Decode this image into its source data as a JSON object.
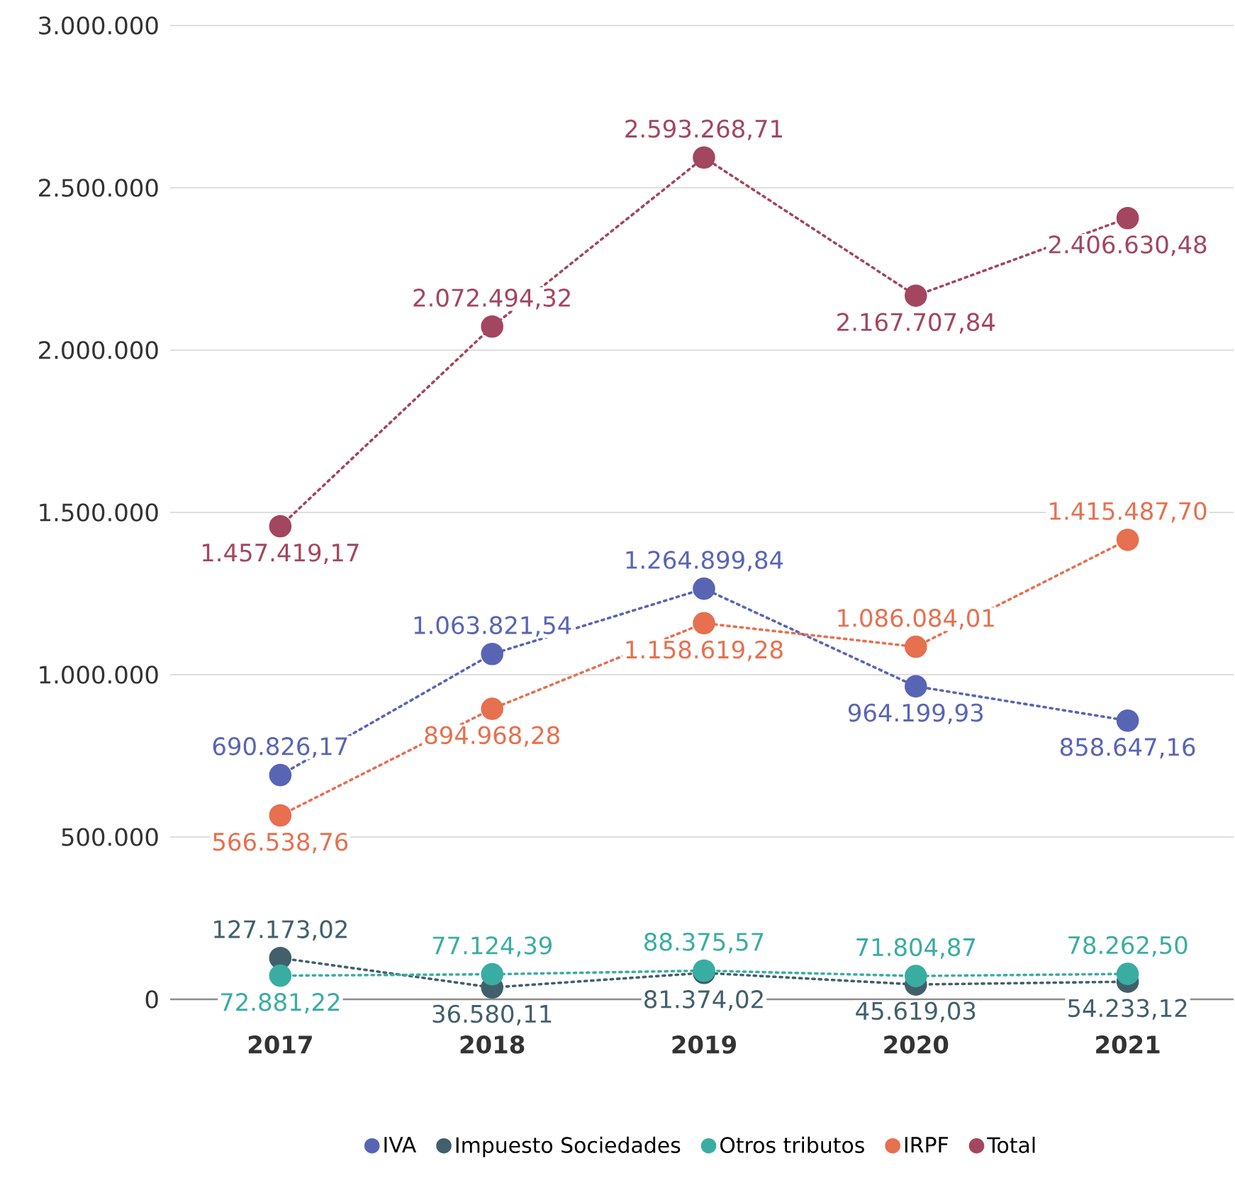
{
  "chart_data": {
    "type": "line",
    "categories": [
      "2017",
      "2018",
      "2019",
      "2020",
      "2021"
    ],
    "series": [
      {
        "name": "IVA",
        "color": "#5865b4",
        "values": [
          690826.17,
          1063821.54,
          1264899.84,
          964199.93,
          858647.16
        ],
        "value_labels": [
          "690.826,17",
          "1.063.821,54",
          "1.264.899,84",
          "964.199,93",
          "858.647,16"
        ]
      },
      {
        "name": "Impuesto Sociedades",
        "color": "#41606b",
        "values": [
          127173.02,
          36580.11,
          81374.02,
          45619.03,
          54233.12
        ],
        "value_labels": [
          "127.173,02",
          "36.580,11",
          "81.374,02",
          "45.619,03",
          "54.233,12"
        ]
      },
      {
        "name": "Otros tributos",
        "color": "#3aada2",
        "values": [
          72881.22,
          77124.39,
          88375.57,
          71804.87,
          78262.5
        ],
        "value_labels": [
          "72.881,22",
          "77.124,39",
          "88.375,57",
          "71.804,87",
          "78.262,50"
        ]
      },
      {
        "name": "IRPF",
        "color": "#e6704f",
        "values": [
          566538.76,
          894968.28,
          1158619.28,
          1086084.01,
          1415487.7
        ],
        "value_labels": [
          "566.538,76",
          "894.968,28",
          "1.158.619,28",
          "1.086.084,01",
          "1.415.487,70"
        ]
      },
      {
        "name": "Total",
        "color": "#a3465f",
        "values": [
          1457419.17,
          2072494.32,
          2593268.71,
          2167707.84,
          2406630.48
        ],
        "value_labels": [
          "1.457.419,17",
          "2.072.494,32",
          "2.593.268,71",
          "2.167.707,84",
          "2.406.630,48"
        ]
      }
    ],
    "ylim": [
      0,
      3000000
    ],
    "yticks": [
      {
        "value": 0,
        "label": "0"
      },
      {
        "value": 500000,
        "label": "500.000"
      },
      {
        "value": 1000000,
        "label": "1.000.000"
      },
      {
        "value": 1500000,
        "label": "1.500.000"
      },
      {
        "value": 2000000,
        "label": "2.000.000"
      },
      {
        "value": 2500000,
        "label": "2.500.000"
      },
      {
        "value": 3000000,
        "label": "3.000.000"
      }
    ],
    "grid": "y",
    "legend": "bottom",
    "marker": "circle",
    "line_style": "dotted"
  }
}
